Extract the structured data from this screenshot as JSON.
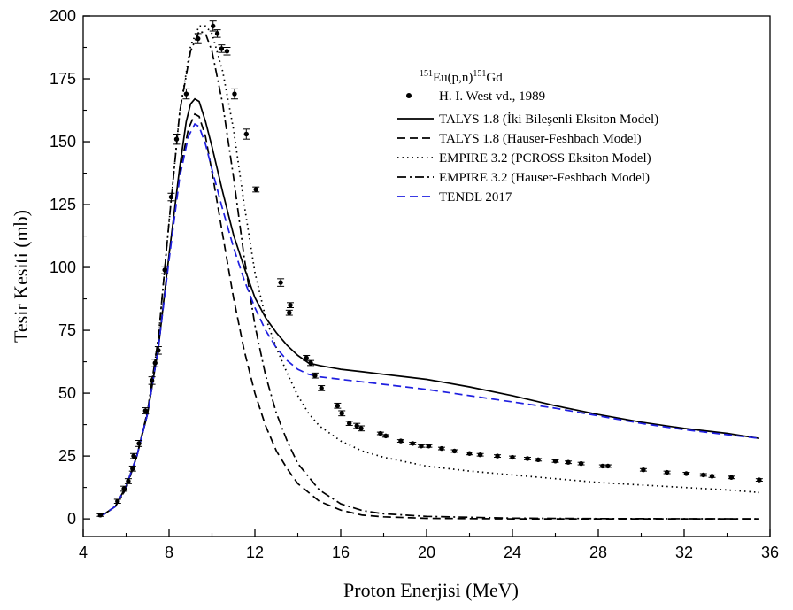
{
  "chart_data": {
    "type": "line",
    "title": "",
    "xlabel": "Proton Enerjisi (MeV)",
    "ylabel": "Tesir Kesiti (mb)",
    "xlim": [
      4,
      36
    ],
    "ylim": [
      -7,
      200
    ],
    "xticks": [
      4,
      8,
      12,
      16,
      20,
      24,
      28,
      32,
      36
    ],
    "yticks": [
      0,
      25,
      50,
      75,
      100,
      125,
      150,
      175,
      200
    ],
    "grid": false,
    "legend_position": "top-right",
    "legend_header": {
      "sup1": "151",
      "text1": "Eu(p,n)",
      "sup2": "151",
      "text2": "Gd"
    },
    "experimental": {
      "name": "H. I. West vd., 1989",
      "color": "#000000",
      "points": [
        [
          4.8,
          1.5,
          0.5
        ],
        [
          5.6,
          7,
          0.8
        ],
        [
          5.9,
          12,
          1.0
        ],
        [
          6.1,
          15,
          1.0
        ],
        [
          6.3,
          20,
          1.0
        ],
        [
          6.35,
          25,
          1.0
        ],
        [
          6.6,
          30,
          1.2
        ],
        [
          6.9,
          43,
          1.2
        ],
        [
          7.2,
          55,
          1.5
        ],
        [
          7.35,
          62,
          1.5
        ],
        [
          7.5,
          67,
          1.5
        ],
        [
          7.8,
          99,
          1.5
        ],
        [
          8.1,
          128,
          1.5
        ],
        [
          8.35,
          151,
          2.0
        ],
        [
          8.8,
          169,
          2.0
        ],
        [
          9.35,
          191,
          2.0
        ],
        [
          10.05,
          196,
          2.0
        ],
        [
          10.25,
          193,
          1.5
        ],
        [
          10.45,
          187,
          1.5
        ],
        [
          10.7,
          186,
          1.5
        ],
        [
          11.05,
          169,
          2.0
        ],
        [
          11.6,
          153,
          2.0
        ],
        [
          12.05,
          131,
          1.0
        ],
        [
          13.2,
          94,
          1.5
        ],
        [
          13.65,
          85,
          1.0
        ],
        [
          13.6,
          82,
          1.0
        ],
        [
          14.4,
          64,
          1.0
        ],
        [
          14.6,
          62,
          1.0
        ],
        [
          14.8,
          57,
          1.0
        ],
        [
          15.1,
          52,
          1.0
        ],
        [
          15.85,
          45,
          1.0
        ],
        [
          16.05,
          42,
          1.0
        ],
        [
          16.4,
          38,
          0.8
        ],
        [
          16.75,
          37,
          1.0
        ],
        [
          16.95,
          36,
          1.0
        ],
        [
          17.85,
          34,
          0.5
        ],
        [
          18.1,
          33,
          0.5
        ],
        [
          18.8,
          31,
          0.5
        ],
        [
          19.35,
          30,
          0.5
        ],
        [
          19.75,
          29,
          0.5
        ],
        [
          20.1,
          29,
          0.5
        ],
        [
          20.7,
          28,
          0.5
        ],
        [
          21.3,
          27,
          0.5
        ],
        [
          22.0,
          26,
          0.5
        ],
        [
          22.5,
          25.5,
          0.5
        ],
        [
          23.3,
          25,
          0.5
        ],
        [
          24.0,
          24.5,
          0.5
        ],
        [
          24.7,
          24,
          0.5
        ],
        [
          25.2,
          23.5,
          0.5
        ],
        [
          26.0,
          23,
          0.5
        ],
        [
          26.6,
          22.5,
          0.5
        ],
        [
          27.2,
          22,
          0.5
        ],
        [
          28.2,
          21,
          0.5
        ],
        [
          28.45,
          21,
          0.5
        ],
        [
          30.1,
          19.5,
          0.5
        ],
        [
          31.2,
          18.5,
          0.5
        ],
        [
          32.1,
          18,
          0.5
        ],
        [
          32.9,
          17.5,
          0.5
        ],
        [
          33.3,
          17,
          0.5
        ],
        [
          34.2,
          16.5,
          0.5
        ],
        [
          35.5,
          15.5,
          0.5
        ]
      ]
    },
    "series": [
      {
        "name": "TALYS 1.8 (İki Bileşenli Eksiton Model)",
        "color": "#000000",
        "dash": "solid",
        "points": [
          [
            4.7,
            1
          ],
          [
            5.0,
            2
          ],
          [
            5.5,
            5
          ],
          [
            6.0,
            13
          ],
          [
            6.5,
            25
          ],
          [
            7.0,
            42
          ],
          [
            7.5,
            68
          ],
          [
            8.0,
            105
          ],
          [
            8.5,
            140
          ],
          [
            8.8,
            158
          ],
          [
            9.0,
            165
          ],
          [
            9.2,
            167
          ],
          [
            9.4,
            166
          ],
          [
            9.7,
            158
          ],
          [
            10.0,
            148
          ],
          [
            10.5,
            130
          ],
          [
            11.0,
            113
          ],
          [
            11.5,
            100
          ],
          [
            12.0,
            88
          ],
          [
            12.5,
            80
          ],
          [
            13.0,
            74
          ],
          [
            13.5,
            69
          ],
          [
            14.0,
            65
          ],
          [
            14.5,
            62
          ],
          [
            15.0,
            61
          ],
          [
            16.0,
            59.5
          ],
          [
            17.0,
            58.5
          ],
          [
            18.0,
            57.5
          ],
          [
            19.0,
            56.5
          ],
          [
            20.0,
            55.5
          ],
          [
            21.0,
            54
          ],
          [
            22.0,
            52.5
          ],
          [
            24.0,
            49
          ],
          [
            26.0,
            45
          ],
          [
            28.0,
            41.5
          ],
          [
            30.0,
            38.5
          ],
          [
            32.0,
            36
          ],
          [
            34.0,
            34
          ],
          [
            35.5,
            32
          ]
        ]
      },
      {
        "name": "TALYS 1.8 (Hauser-Feshbach Model)",
        "color": "#000000",
        "dash": "dashed",
        "points": [
          [
            4.7,
            1
          ],
          [
            5.0,
            2
          ],
          [
            5.5,
            5
          ],
          [
            6.0,
            13
          ],
          [
            6.5,
            25
          ],
          [
            7.0,
            42
          ],
          [
            7.5,
            68
          ],
          [
            8.0,
            104
          ],
          [
            8.5,
            138
          ],
          [
            8.9,
            155
          ],
          [
            9.2,
            161
          ],
          [
            9.4,
            160
          ],
          [
            9.7,
            152
          ],
          [
            10.0,
            138
          ],
          [
            10.5,
            113
          ],
          [
            11.0,
            88
          ],
          [
            11.5,
            67
          ],
          [
            12.0,
            50
          ],
          [
            12.5,
            37
          ],
          [
            13.0,
            27
          ],
          [
            13.5,
            20
          ],
          [
            14.0,
            14
          ],
          [
            15.0,
            7
          ],
          [
            16.0,
            3.5
          ],
          [
            17.0,
            1.5
          ],
          [
            18.0,
            0.8
          ],
          [
            20.0,
            0.2
          ],
          [
            24.0,
            0
          ],
          [
            30.0,
            0
          ],
          [
            35.5,
            0
          ]
        ]
      },
      {
        "name": "EMPIRE 3.2 (PCROSS Eksiton Model)",
        "color": "#000000",
        "dash": "dotted",
        "points": [
          [
            4.7,
            1
          ],
          [
            5.0,
            2
          ],
          [
            5.5,
            5
          ],
          [
            6.0,
            12
          ],
          [
            6.5,
            25
          ],
          [
            7.0,
            43
          ],
          [
            7.5,
            72
          ],
          [
            8.0,
            118
          ],
          [
            8.5,
            162
          ],
          [
            9.0,
            188
          ],
          [
            9.4,
            196
          ],
          [
            9.7,
            196
          ],
          [
            10.0,
            193
          ],
          [
            10.5,
            178
          ],
          [
            11.0,
            155
          ],
          [
            11.5,
            125
          ],
          [
            12.0,
            98
          ],
          [
            12.5,
            80
          ],
          [
            13.0,
            68
          ],
          [
            13.5,
            58
          ],
          [
            14.0,
            49
          ],
          [
            14.5,
            42
          ],
          [
            15.0,
            37
          ],
          [
            16.0,
            31
          ],
          [
            17.0,
            27
          ],
          [
            18.0,
            24.5
          ],
          [
            20.0,
            21
          ],
          [
            22.0,
            19
          ],
          [
            24.0,
            17.5
          ],
          [
            26.0,
            16
          ],
          [
            28.0,
            14.5
          ],
          [
            30.0,
            13.5
          ],
          [
            32.0,
            12.5
          ],
          [
            34.0,
            11.5
          ],
          [
            35.5,
            10.5
          ]
        ]
      },
      {
        "name": "EMPIRE 3.2 (Hauser-Feshbach Model)",
        "color": "#000000",
        "dash": "dashdot",
        "points": [
          [
            4.7,
            1
          ],
          [
            5.0,
            2
          ],
          [
            5.5,
            5
          ],
          [
            6.0,
            12
          ],
          [
            6.5,
            25
          ],
          [
            7.0,
            43
          ],
          [
            7.5,
            72
          ],
          [
            8.0,
            118
          ],
          [
            8.5,
            162
          ],
          [
            9.0,
            186
          ],
          [
            9.4,
            194
          ],
          [
            9.7,
            193
          ],
          [
            10.0,
            186
          ],
          [
            10.5,
            165
          ],
          [
            11.0,
            136
          ],
          [
            11.5,
            104
          ],
          [
            12.0,
            77
          ],
          [
            12.5,
            57
          ],
          [
            13.0,
            42
          ],
          [
            13.5,
            31
          ],
          [
            14.0,
            22
          ],
          [
            15.0,
            11.5
          ],
          [
            16.0,
            6
          ],
          [
            17.0,
            3.3
          ],
          [
            18.0,
            2
          ],
          [
            20.0,
            1
          ],
          [
            24.0,
            0.3
          ],
          [
            28.0,
            0.1
          ],
          [
            35.5,
            0
          ]
        ]
      },
      {
        "name": "TENDL 2017",
        "color": "#1f1fe0",
        "dash": "dashed",
        "points": [
          [
            4.7,
            1
          ],
          [
            5.0,
            2
          ],
          [
            5.5,
            5
          ],
          [
            6.0,
            13
          ],
          [
            6.5,
            25
          ],
          [
            7.0,
            42
          ],
          [
            7.5,
            68
          ],
          [
            8.0,
            103
          ],
          [
            8.5,
            136
          ],
          [
            8.9,
            152
          ],
          [
            9.2,
            157
          ],
          [
            9.4,
            156
          ],
          [
            9.7,
            149
          ],
          [
            10.0,
            139
          ],
          [
            10.5,
            123
          ],
          [
            11.0,
            108
          ],
          [
            11.5,
            95
          ],
          [
            12.0,
            84
          ],
          [
            12.5,
            75
          ],
          [
            13.0,
            68
          ],
          [
            13.5,
            63
          ],
          [
            14.0,
            59.5
          ],
          [
            14.5,
            57.5
          ],
          [
            15.0,
            56.5
          ],
          [
            16.0,
            55.5
          ],
          [
            17.0,
            54.5
          ],
          [
            18.0,
            53.5
          ],
          [
            20.0,
            51.5
          ],
          [
            22.0,
            49
          ],
          [
            24.0,
            46.5
          ],
          [
            26.0,
            44
          ],
          [
            28.0,
            41
          ],
          [
            30.0,
            38
          ],
          [
            32.0,
            35.5
          ],
          [
            34.0,
            33.5
          ],
          [
            35.5,
            32
          ]
        ]
      }
    ]
  }
}
